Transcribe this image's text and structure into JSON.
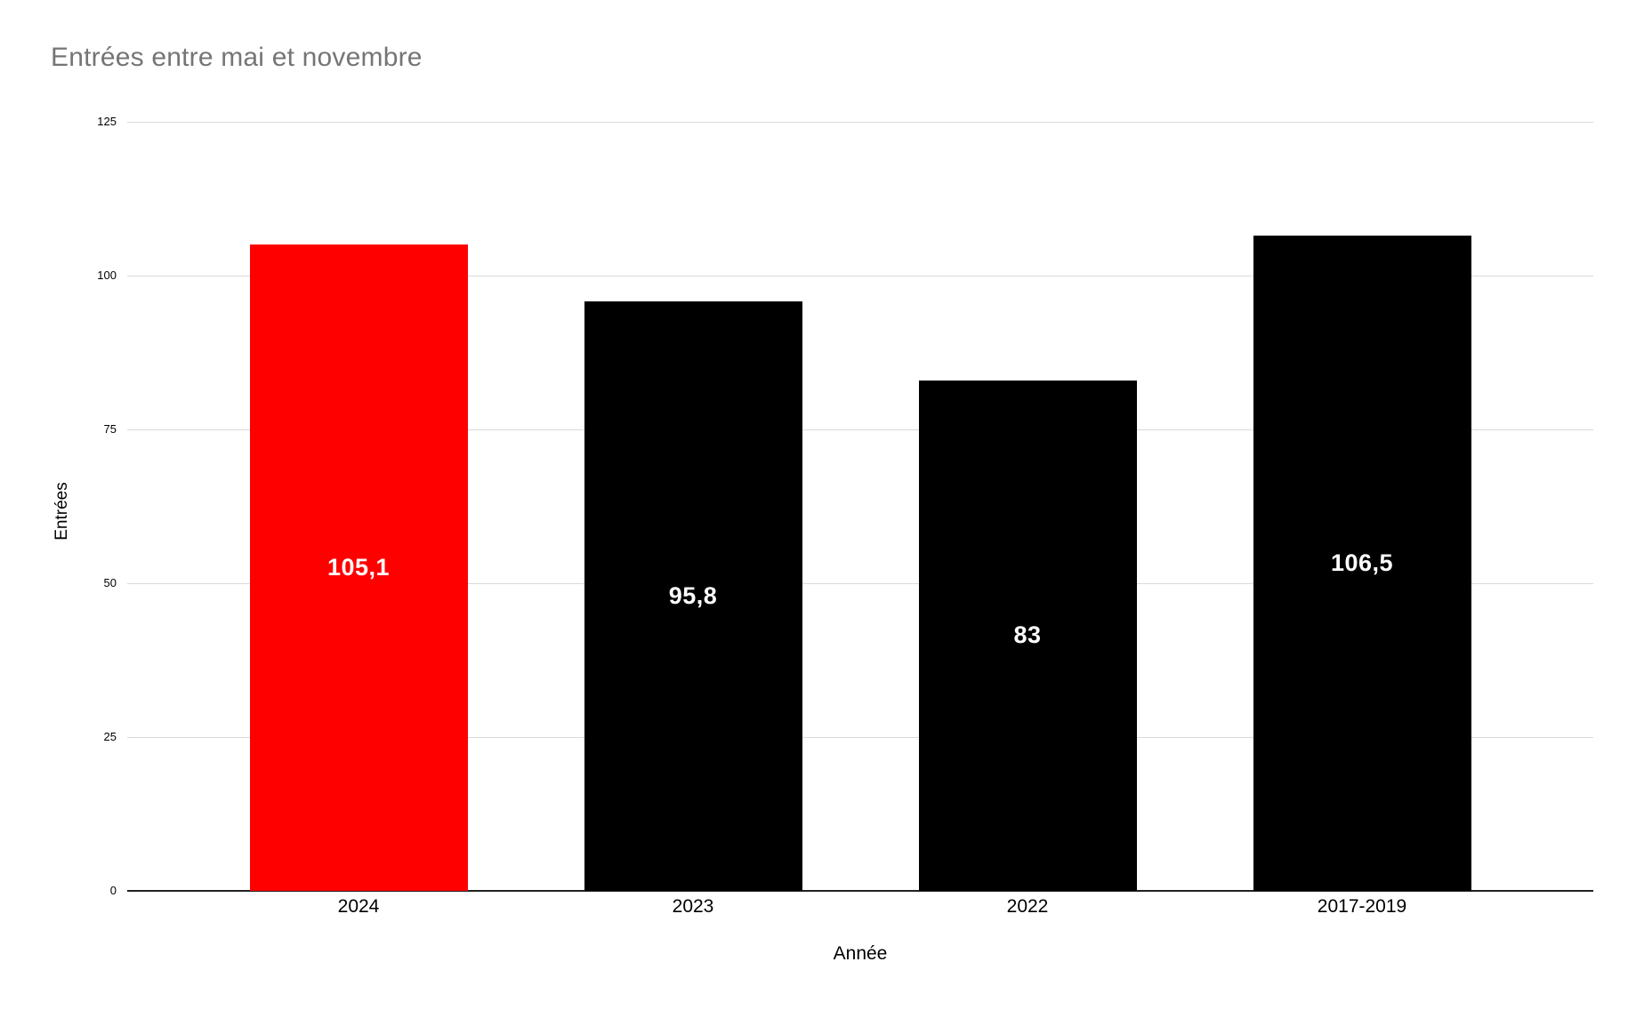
{
  "chart_data": {
    "type": "bar",
    "title": "Entrées entre mai et novembre",
    "xlabel": "Année",
    "ylabel": "Entrées",
    "categories": [
      "2024",
      "2023",
      "2022",
      "2017-2019"
    ],
    "values": [
      105.1,
      95.8,
      83,
      106.5
    ],
    "value_labels": [
      "105,1",
      "95,8",
      "83",
      "106,5"
    ],
    "bar_colors": [
      "#ff0000",
      "#000000",
      "#000000",
      "#000000"
    ],
    "value_label_color": "#ffffff",
    "ylim": [
      0,
      125
    ],
    "y_ticks": [
      0,
      25,
      50,
      75,
      100,
      125
    ],
    "grid": "horizontal",
    "legend": "none",
    "colors": {
      "title": "#757575",
      "gridline": "#dadada",
      "baseline": "#212121",
      "axis_text": "#000000",
      "background": "#ffffff"
    }
  }
}
